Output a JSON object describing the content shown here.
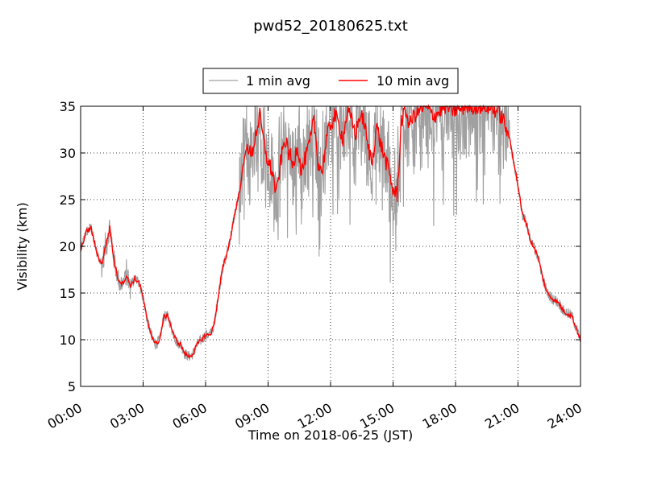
{
  "chart_data": {
    "type": "line",
    "title": "pwd52_20180625.txt",
    "xlabel": "Time on 2018-06-25 (JST)",
    "ylabel": "Visibility (km)",
    "xlim_hours": [
      0,
      24
    ],
    "ylim": [
      5,
      35
    ],
    "grid": true,
    "legend_position": "top-center, above plot",
    "x_ticks": [
      {
        "hour": 0,
        "label": "00:00"
      },
      {
        "hour": 3,
        "label": "03:00"
      },
      {
        "hour": 6,
        "label": "06:00"
      },
      {
        "hour": 9,
        "label": "09:00"
      },
      {
        "hour": 12,
        "label": "12:00"
      },
      {
        "hour": 15,
        "label": "15:00"
      },
      {
        "hour": 18,
        "label": "18:00"
      },
      {
        "hour": 21,
        "label": "21:00"
      },
      {
        "hour": 24,
        "label": "24:00"
      }
    ],
    "y_ticks": [
      5,
      10,
      15,
      20,
      25,
      30,
      35
    ],
    "series": [
      {
        "name": "1 min avg",
        "color": "#a0a0a0",
        "noise": "high-frequency 1-minute fluctuation around the 10 min average, up to about +/-10 km between 08:00 and 20:30",
        "note": "envelope approximately follows the 10 min avg values below"
      },
      {
        "name": "10 min avg",
        "color": "#ff0000",
        "x_hours": [
          0,
          0.25,
          0.5,
          0.75,
          1.0,
          1.2,
          1.4,
          1.6,
          1.8,
          2.0,
          2.2,
          2.4,
          2.6,
          2.8,
          3.0,
          3.2,
          3.4,
          3.6,
          3.8,
          4.0,
          4.2,
          4.4,
          4.6,
          4.8,
          5.0,
          5.2,
          5.4,
          5.6,
          5.8,
          6.0,
          6.2,
          6.4,
          6.6,
          6.8,
          7.0,
          7.2,
          7.4,
          7.6,
          7.8,
          8.0,
          8.2,
          8.4,
          8.6,
          8.8,
          9.0,
          9.2,
          9.4,
          9.6,
          9.8,
          10.0,
          10.2,
          10.4,
          10.6,
          10.8,
          11.0,
          11.2,
          11.4,
          11.6,
          11.8,
          12.0,
          12.2,
          12.4,
          12.6,
          12.8,
          13.0,
          13.2,
          13.4,
          13.6,
          13.8,
          14.0,
          14.2,
          14.4,
          14.6,
          14.8,
          15.0,
          15.2,
          15.4,
          15.6,
          15.8,
          16.0,
          16.5,
          17.0,
          17.5,
          18.0,
          18.5,
          19.0,
          19.5,
          20.0,
          20.3,
          20.6,
          20.8,
          21.0,
          21.2,
          21.4,
          21.6,
          21.8,
          22.0,
          22.2,
          22.4,
          22.6,
          22.8,
          23.0,
          23.2,
          23.4,
          23.6,
          23.8,
          24.0
        ],
        "values": [
          19.5,
          21.5,
          22.0,
          19.5,
          18.0,
          20.0,
          22.0,
          18.5,
          16.5,
          16.0,
          16.8,
          15.8,
          16.5,
          16.2,
          14.5,
          12.0,
          10.5,
          9.5,
          10.0,
          12.5,
          12.5,
          11.0,
          9.8,
          9.5,
          8.5,
          8.2,
          8.5,
          9.5,
          10.0,
          10.5,
          10.5,
          11.5,
          14.5,
          17.5,
          19.0,
          21.0,
          23.5,
          25.5,
          28.5,
          31.0,
          29.5,
          32.0,
          34.0,
          31.0,
          29.0,
          28.0,
          25.5,
          29.0,
          31.5,
          30.0,
          28.5,
          31.0,
          28.0,
          29.5,
          31.0,
          33.5,
          29.0,
          28.0,
          31.5,
          33.0,
          34.0,
          33.0,
          31.5,
          34.5,
          33.5,
          32.0,
          34.0,
          33.5,
          30.5,
          29.0,
          33.0,
          31.0,
          29.5,
          28.0,
          26.0,
          25.5,
          33.5,
          34.5,
          33.0,
          34.0,
          35.0,
          34.0,
          35.0,
          34.5,
          35.0,
          35.0,
          35.0,
          34.5,
          33.5,
          31.5,
          29.0,
          26.5,
          23.5,
          22.5,
          20.5,
          19.8,
          18.5,
          16.5,
          15.0,
          14.5,
          14.2,
          13.8,
          13.0,
          12.8,
          12.5,
          11.2,
          10.0
        ]
      }
    ]
  }
}
